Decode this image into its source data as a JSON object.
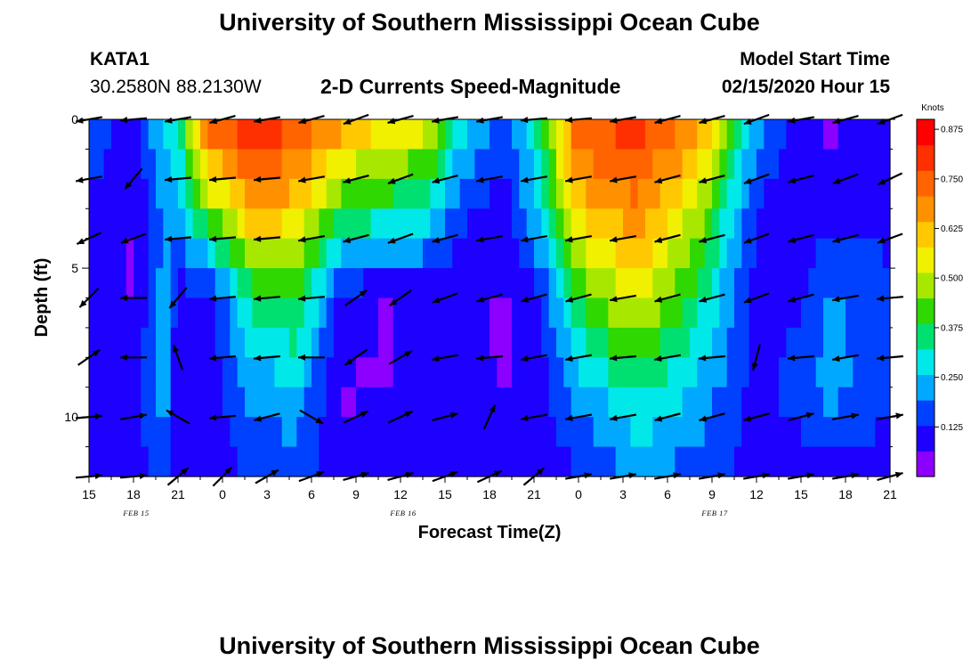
{
  "header": {
    "title_top": "University of Southern Mississippi Ocean Cube",
    "title_bottom": "University of Southern Mississippi Ocean Cube",
    "station": "KATA1",
    "coords": "30.2580N 88.2130W",
    "subtitle": "2-D Currents Speed-Magnitude",
    "model_label": "Model Start Time",
    "model_time": "02/15/2020 Hour 15"
  },
  "chart_data": {
    "type": "heatmap",
    "title": "2-D Currents Speed-Magnitude",
    "xlabel": "Forecast Time(Z)",
    "ylabel": "Depth (ft)",
    "x_tick_labels": [
      "15",
      "18",
      "21",
      "0",
      "3",
      "6",
      "9",
      "12",
      "15",
      "18",
      "21",
      "0",
      "3",
      "6",
      "9",
      "12",
      "15",
      "18",
      "21"
    ],
    "date_labels": [
      {
        "text": "FEB 15",
        "tick_index": 1
      },
      {
        "text": "FEB 16",
        "tick_index": 7
      },
      {
        "text": "FEB 17",
        "tick_index": 14
      }
    ],
    "x_hours_range": [
      0,
      54
    ],
    "y_ticks": [
      0,
      5,
      10
    ],
    "ylim": [
      0,
      12
    ],
    "colorbar": {
      "unit_label": "Knots",
      "ticks": [
        0.125,
        0.25,
        0.375,
        0.5,
        0.625,
        0.75,
        0.875
      ],
      "tick_labels": [
        "0.125",
        "0.250",
        "0.375",
        "0.500",
        "0.625",
        "0.750",
        "0.875"
      ],
      "range": [
        0,
        0.9
      ],
      "colors": [
        "#8c00ff",
        "#1e00ff",
        "#0040ff",
        "#00a8ff",
        "#00e8e8",
        "#00e070",
        "#2ed800",
        "#a8e800",
        "#f0f000",
        "#ffc800",
        "#ff9000",
        "#ff6400",
        "#ff3000",
        "#ff0000"
      ]
    },
    "speed_keyframes": [
      {
        "hour": 0,
        "depths": [
          0,
          3,
          6,
          9,
          12
        ],
        "speeds": [
          0.18,
          0.12,
          0.1,
          0.12,
          0.1
        ]
      },
      {
        "hour": 3,
        "depths": [
          0,
          3,
          6,
          9,
          12
        ],
        "speeds": [
          0.08,
          0.06,
          0.06,
          0.1,
          0.08
        ]
      },
      {
        "hour": 5,
        "depths": [
          0,
          3,
          6,
          9,
          12
        ],
        "speeds": [
          0.28,
          0.2,
          0.22,
          0.25,
          0.16
        ]
      },
      {
        "hour": 6,
        "depths": [
          0,
          3,
          6,
          9,
          12
        ],
        "speeds": [
          0.32,
          0.24,
          0.1,
          0.08,
          0.08
        ]
      },
      {
        "hour": 8,
        "depths": [
          0,
          3,
          6,
          9,
          12
        ],
        "speeds": [
          0.75,
          0.45,
          0.08,
          0.08,
          0.08
        ]
      },
      {
        "hour": 11,
        "depths": [
          0,
          3,
          6,
          9,
          12
        ],
        "speeds": [
          0.85,
          0.65,
          0.35,
          0.22,
          0.14
        ]
      },
      {
        "hour": 14,
        "depths": [
          0,
          3,
          6,
          9,
          12
        ],
        "speeds": [
          0.78,
          0.6,
          0.4,
          0.25,
          0.15
        ]
      },
      {
        "hour": 17,
        "depths": [
          0,
          3,
          6,
          9,
          12
        ],
        "speeds": [
          0.68,
          0.4,
          0.1,
          0.06,
          0.08
        ]
      },
      {
        "hour": 20,
        "depths": [
          0,
          3,
          6,
          9,
          12
        ],
        "speeds": [
          0.6,
          0.35,
          0.06,
          0.06,
          0.1
        ]
      },
      {
        "hour": 23,
        "depths": [
          0,
          3,
          6,
          9,
          12
        ],
        "speeds": [
          0.55,
          0.3,
          0.08,
          0.08,
          0.1
        ]
      },
      {
        "hour": 25,
        "depths": [
          0,
          3,
          6,
          9,
          12
        ],
        "speeds": [
          0.3,
          0.15,
          0.07,
          0.08,
          0.1
        ]
      },
      {
        "hour": 28,
        "depths": [
          0,
          3,
          6,
          9,
          12
        ],
        "speeds": [
          0.15,
          0.1,
          0.06,
          0.06,
          0.08
        ]
      },
      {
        "hour": 30,
        "depths": [
          0,
          3,
          6,
          9,
          12
        ],
        "speeds": [
          0.3,
          0.25,
          0.08,
          0.08,
          0.1
        ]
      },
      {
        "hour": 33,
        "depths": [
          0,
          3,
          6,
          9,
          12
        ],
        "speeds": [
          0.78,
          0.6,
          0.4,
          0.22,
          0.12
        ]
      },
      {
        "hour": 37,
        "depths": [
          0,
          3,
          6,
          9,
          12
        ],
        "speeds": [
          0.8,
          0.7,
          0.55,
          0.35,
          0.2
        ]
      },
      {
        "hour": 41,
        "depths": [
          0,
          3,
          6,
          9,
          12
        ],
        "speeds": [
          0.7,
          0.5,
          0.35,
          0.25,
          0.16
        ]
      },
      {
        "hour": 45,
        "depths": [
          0,
          3,
          6,
          9,
          12
        ],
        "speeds": [
          0.22,
          0.12,
          0.1,
          0.1,
          0.1
        ]
      },
      {
        "hour": 48,
        "depths": [
          0,
          3,
          6,
          9,
          12
        ],
        "speeds": [
          0.08,
          0.07,
          0.12,
          0.16,
          0.1
        ]
      },
      {
        "hour": 50,
        "depths": [
          0,
          3,
          6,
          9,
          12
        ],
        "speeds": [
          0.05,
          0.1,
          0.2,
          0.22,
          0.1
        ]
      },
      {
        "hour": 54,
        "depths": [
          0,
          3,
          6,
          9,
          12
        ],
        "speeds": [
          0.12,
          0.1,
          0.15,
          0.14,
          0.1
        ]
      }
    ],
    "vector_depths": [
      0,
      2,
      4,
      6,
      8,
      10,
      12
    ],
    "vector_hours": [
      0,
      3,
      6,
      9,
      12,
      15,
      18,
      21,
      24,
      27,
      30,
      33,
      36,
      39,
      42,
      45,
      48,
      51,
      54
    ],
    "vector_angles_deg": [
      [
        190,
        185,
        190,
        195,
        190,
        195,
        200,
        195,
        190,
        190,
        185,
        185,
        190,
        195,
        195,
        200,
        190,
        195,
        200
      ],
      [
        190,
        230,
        185,
        185,
        185,
        190,
        195,
        200,
        195,
        190,
        190,
        190,
        190,
        195,
        195,
        200,
        195,
        200,
        205
      ],
      [
        205,
        200,
        185,
        185,
        185,
        190,
        195,
        200,
        195,
        190,
        190,
        190,
        190,
        195,
        195,
        200,
        195,
        195,
        200
      ],
      [
        225,
        180,
        230,
        185,
        185,
        185,
        35,
        215,
        200,
        195,
        195,
        195,
        190,
        195,
        195,
        200,
        195,
        190,
        185
      ],
      [
        35,
        180,
        110,
        185,
        185,
        180,
        215,
        30,
        190,
        185,
        190,
        190,
        185,
        190,
        185,
        255,
        185,
        190,
        185
      ],
      [
        5,
        10,
        150,
        185,
        195,
        330,
        25,
        25,
        15,
        65,
        190,
        190,
        190,
        195,
        195,
        195,
        15,
        10,
        10
      ],
      [
        5,
        5,
        40,
        45,
        30,
        20,
        15,
        15,
        20,
        25,
        40,
        10,
        10,
        10,
        10,
        10,
        10,
        10,
        15
      ]
    ]
  }
}
